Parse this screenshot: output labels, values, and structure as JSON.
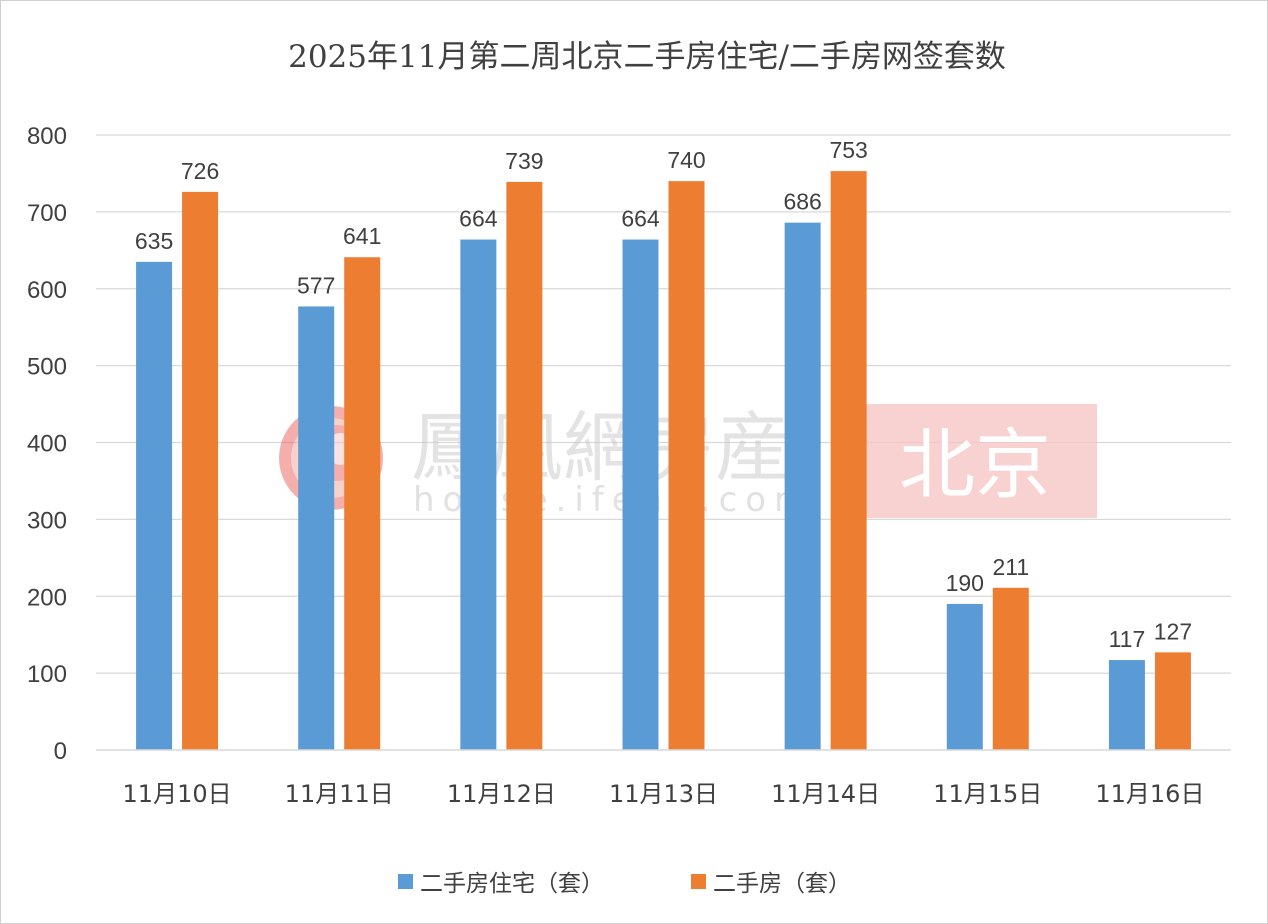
{
  "chart_data": {
    "type": "bar",
    "title": "2025年11月第二周北京二手房住宅/二手房网签套数",
    "categories": [
      "11月10日",
      "11月11日",
      "11月12日",
      "11月13日",
      "11月14日",
      "11月15日",
      "11月16日"
    ],
    "series": [
      {
        "name": "二手房住宅（套）",
        "color": "#5b9bd5",
        "values": [
          635,
          577,
          664,
          664,
          686,
          190,
          117
        ]
      },
      {
        "name": "二手房（套）",
        "color": "#ed7d31",
        "values": [
          726,
          641,
          739,
          740,
          753,
          211,
          127
        ]
      }
    ],
    "ylim": [
      0,
      800
    ],
    "yticks": [
      0,
      100,
      200,
      300,
      400,
      500,
      600,
      700,
      800
    ],
    "grid": true,
    "legend_position": "bottom",
    "data_labels": true
  },
  "watermark": {
    "brand": "鳳凰網房産",
    "url": "house.ifeng.com",
    "city": "北京",
    "logo_icon": "phoenix-logo-icon",
    "logo_color": "#e8504a",
    "city_bg_color": "#f6c1c1"
  }
}
